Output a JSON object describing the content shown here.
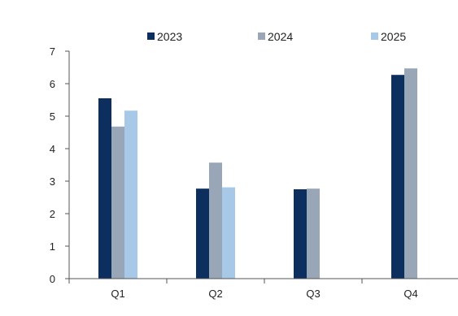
{
  "chart_data": {
    "type": "bar",
    "title": "",
    "xlabel": "",
    "ylabel": "",
    "categories": [
      "Q1",
      "Q2",
      "Q3",
      "Q4"
    ],
    "ylim": [
      0,
      7
    ],
    "yticks": [
      "0",
      "1",
      "2",
      "3",
      "4",
      "5",
      "6",
      "7"
    ],
    "grid": false,
    "legend_position": "top",
    "series": [
      {
        "name": "2023",
        "color": "#0d2f5f",
        "values": [
          5.55,
          2.77,
          2.75,
          6.27
        ]
      },
      {
        "name": "2024",
        "color": "#98a6b8",
        "values": [
          4.68,
          3.57,
          2.77,
          6.47
        ]
      },
      {
        "name": "2025",
        "color": "#a8c8e8",
        "values": [
          5.17,
          2.81,
          null,
          null
        ]
      }
    ]
  }
}
